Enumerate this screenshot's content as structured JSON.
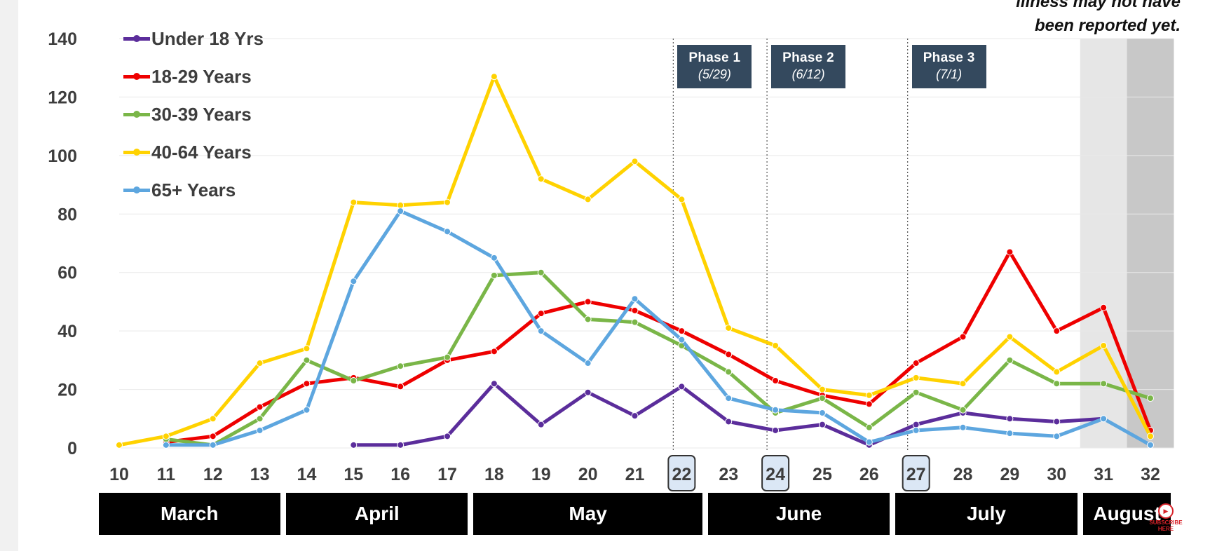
{
  "note": {
    "line1": "illness may not have",
    "line2": "been reported yet."
  },
  "legend": [
    {
      "label": "Under 18 Yrs",
      "color": "#5b2d9b"
    },
    {
      "label": "18-29 Years",
      "color": "#ee0000"
    },
    {
      "label": "30-39 Years",
      "color": "#7ab648"
    },
    {
      "label": "40-64 Years",
      "color": "#ffd200"
    },
    {
      "label": "65+ Years",
      "color": "#5da6df"
    }
  ],
  "phases": [
    {
      "title": "Phase 1",
      "date": "(5/29)",
      "week": 22
    },
    {
      "title": "Phase 2",
      "date": "(6/12)",
      "week": 24
    },
    {
      "title": "Phase 3",
      "date": "(7/1)",
      "week": 27
    }
  ],
  "months": [
    {
      "label": "March",
      "weeks": [
        10,
        13
      ]
    },
    {
      "label": "April",
      "weeks": [
        14,
        17
      ]
    },
    {
      "label": "May",
      "weeks": [
        18,
        22
      ]
    },
    {
      "label": "June",
      "weeks": [
        23,
        26
      ]
    },
    {
      "label": "July",
      "weeks": [
        27,
        30
      ]
    },
    {
      "label": "August",
      "weeks": [
        31,
        32
      ]
    }
  ],
  "watermark": {
    "text": "SUBSCRIBE HERE"
  },
  "chart_data": {
    "type": "line",
    "title": "",
    "xlabel": "",
    "ylabel": "",
    "ylim": [
      0,
      140
    ],
    "yticks": [
      0,
      20,
      40,
      60,
      80,
      100,
      120,
      140
    ],
    "xlim": [
      10,
      32
    ],
    "x": [
      10,
      11,
      12,
      13,
      14,
      15,
      16,
      17,
      18,
      19,
      20,
      21,
      22,
      23,
      24,
      25,
      26,
      27,
      28,
      29,
      30,
      31,
      32
    ],
    "highlighted_weeks": [
      22,
      24,
      27
    ],
    "shaded_weeks": [
      31,
      32
    ],
    "grid": "horizontal",
    "legend_position": "top-left",
    "series": [
      {
        "name": "Under 18 Yrs",
        "color": "#5b2d9b",
        "x": [
          15,
          16,
          17,
          18,
          19,
          20,
          21,
          22,
          23,
          24,
          25,
          26,
          27,
          28,
          29,
          30,
          31
        ],
        "values": [
          1,
          1,
          4,
          22,
          8,
          19,
          11,
          21,
          9,
          6,
          8,
          1,
          8,
          12,
          10,
          9,
          10
        ]
      },
      {
        "name": "18-29 Years",
        "color": "#ee0000",
        "x": [
          11,
          12,
          13,
          14,
          15,
          16,
          17,
          18,
          19,
          20,
          21,
          22,
          23,
          24,
          25,
          26,
          27,
          28,
          29,
          30,
          31,
          32
        ],
        "values": [
          2,
          4,
          14,
          22,
          24,
          21,
          30,
          33,
          46,
          50,
          47,
          40,
          32,
          23,
          18,
          15,
          29,
          38,
          67,
          40,
          48,
          6
        ]
      },
      {
        "name": "30-39 Years",
        "color": "#7ab648",
        "x": [
          11,
          12,
          13,
          14,
          15,
          16,
          17,
          18,
          19,
          20,
          21,
          22,
          23,
          24,
          25,
          26,
          27,
          28,
          29,
          30,
          31,
          32
        ],
        "values": [
          3,
          1,
          10,
          30,
          23,
          28,
          31,
          59,
          60,
          44,
          43,
          35,
          26,
          12,
          17,
          7,
          19,
          13,
          30,
          22,
          22,
          17
        ]
      },
      {
        "name": "40-64 Years",
        "color": "#ffd200",
        "x": [
          10,
          11,
          12,
          13,
          14,
          15,
          16,
          17,
          18,
          19,
          20,
          21,
          22,
          23,
          24,
          25,
          26,
          27,
          28,
          29,
          30,
          31,
          32
        ],
        "values": [
          1,
          4,
          10,
          29,
          34,
          84,
          83,
          84,
          127,
          92,
          85,
          98,
          85,
          41,
          35,
          20,
          18,
          24,
          22,
          38,
          26,
          35,
          4
        ]
      },
      {
        "name": "65+ Years",
        "color": "#5da6df",
        "x": [
          11,
          12,
          13,
          14,
          15,
          16,
          17,
          18,
          19,
          20,
          21,
          22,
          23,
          24,
          25,
          26,
          27,
          28,
          29,
          30,
          31,
          32
        ],
        "values": [
          1,
          1,
          6,
          13,
          57,
          81,
          74,
          65,
          40,
          29,
          51,
          37,
          17,
          13,
          12,
          2,
          6,
          7,
          5,
          4,
          10,
          1
        ]
      }
    ]
  }
}
